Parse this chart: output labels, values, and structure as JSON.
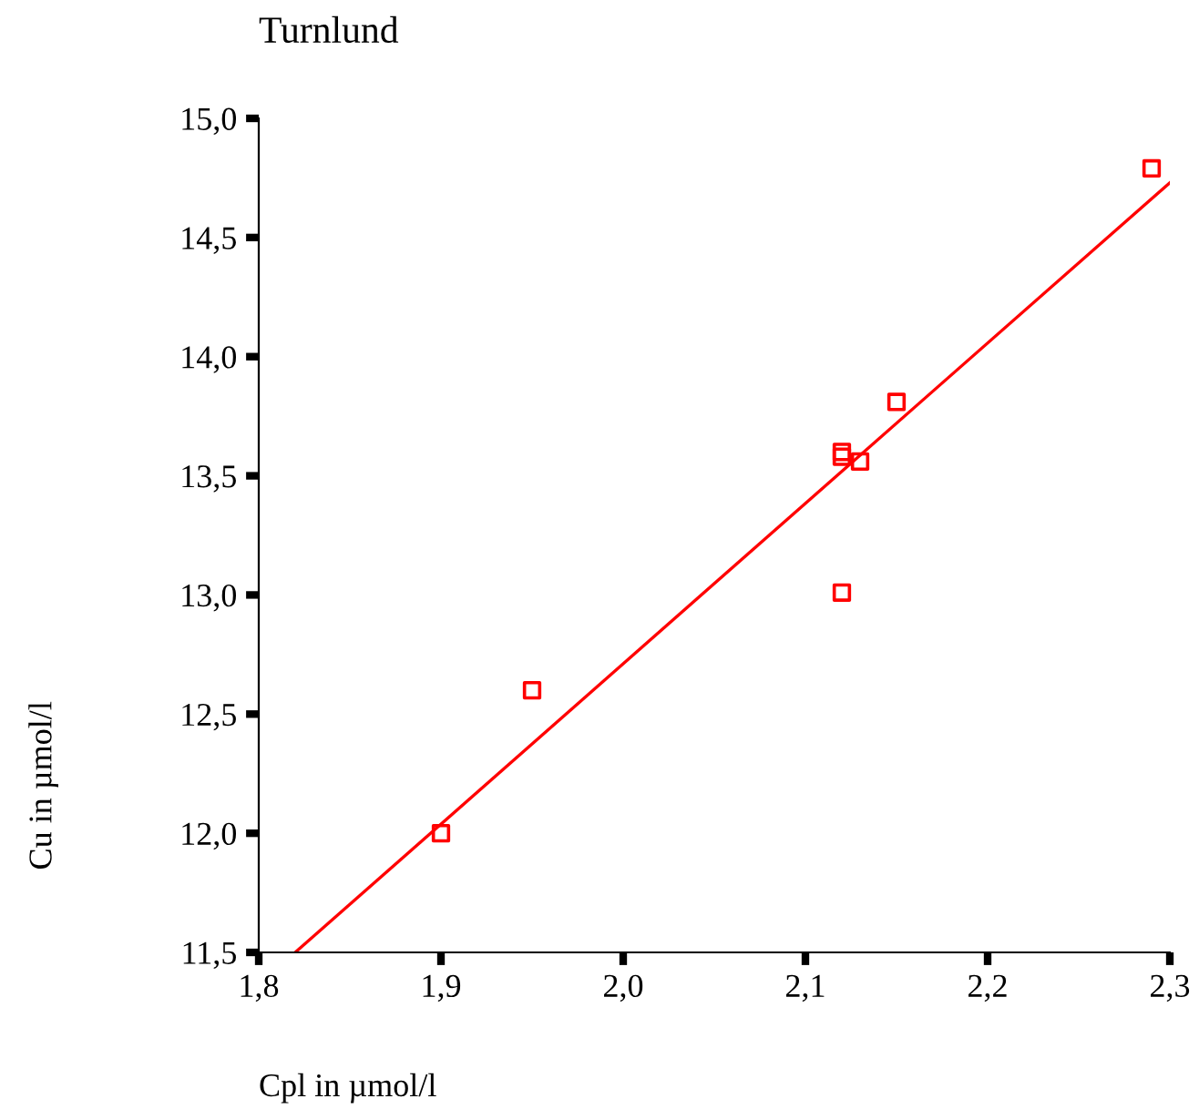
{
  "chart_data": {
    "type": "scatter",
    "title": "Turnlund",
    "xlabel": "Cpl in µmol/l",
    "ylabel": "Cu in µmol/l",
    "series": [
      {
        "color": "#ff0000",
        "marker": "square",
        "x": [
          2.29,
          2.15,
          2.12,
          2.12,
          2.13,
          2.12,
          1.95,
          1.9
        ],
        "values": [
          14.79,
          13.81,
          13.6,
          13.58,
          13.56,
          13.01,
          12.6,
          12.0
        ]
      },
      {
        "type": "line",
        "color": "#ff0000",
        "marker": "none",
        "line_style": "solid",
        "x": [
          1.82,
          2.3
        ],
        "values": [
          11.5,
          14.73
        ]
      }
    ],
    "xlim": [
      1.8,
      2.3
    ],
    "ylim": [
      11.5,
      15.0
    ],
    "xticks": [
      {
        "value": 1.8,
        "label": "1,8"
      },
      {
        "value": 1.9,
        "label": "1,9"
      },
      {
        "value": 2.0,
        "label": "2,0"
      },
      {
        "value": 2.1,
        "label": "2,1"
      },
      {
        "value": 2.2,
        "label": "2,2"
      },
      {
        "value": 2.3,
        "label": "2,3"
      }
    ],
    "yticks": [
      {
        "value": 11.5,
        "label": "11,5"
      },
      {
        "value": 12.0,
        "label": "12,0"
      },
      {
        "value": 12.5,
        "label": "12,5"
      },
      {
        "value": 13.0,
        "label": "13,0"
      },
      {
        "value": 13.5,
        "label": "13,5"
      },
      {
        "value": 14.0,
        "label": "14,0"
      },
      {
        "value": 14.5,
        "label": "14,5"
      },
      {
        "value": 15.0,
        "label": "15,0"
      }
    ],
    "grid": false,
    "legend": false
  }
}
